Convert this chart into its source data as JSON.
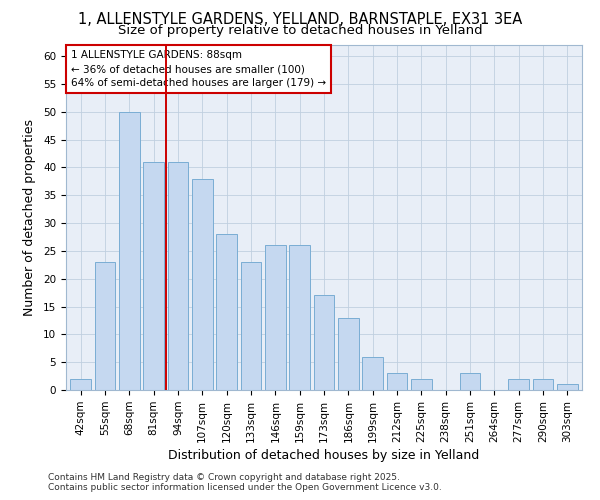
{
  "title_line1": "1, ALLENSTYLE GARDENS, YELLAND, BARNSTAPLE, EX31 3EA",
  "title_line2": "Size of property relative to detached houses in Yelland",
  "xlabel": "Distribution of detached houses by size in Yelland",
  "ylabel": "Number of detached properties",
  "categories": [
    "42sqm",
    "55sqm",
    "68sqm",
    "81sqm",
    "94sqm",
    "107sqm",
    "120sqm",
    "133sqm",
    "146sqm",
    "159sqm",
    "173sqm",
    "186sqm",
    "199sqm",
    "212sqm",
    "225sqm",
    "238sqm",
    "251sqm",
    "264sqm",
    "277sqm",
    "290sqm",
    "303sqm"
  ],
  "values": [
    2,
    23,
    50,
    41,
    41,
    38,
    28,
    23,
    26,
    26,
    17,
    13,
    6,
    3,
    2,
    0,
    3,
    0,
    2,
    2,
    1
  ],
  "bar_color": "#c5d8f0",
  "bar_edge_color": "#7aadd4",
  "vline_x": 3.5,
  "vline_color": "#cc0000",
  "annotation_text": "1 ALLENSTYLE GARDENS: 88sqm\n← 36% of detached houses are smaller (100)\n64% of semi-detached houses are larger (179) →",
  "annotation_box_color": "#ffffff",
  "annotation_box_edge": "#cc0000",
  "ylim": [
    0,
    62
  ],
  "yticks": [
    0,
    5,
    10,
    15,
    20,
    25,
    30,
    35,
    40,
    45,
    50,
    55,
    60
  ],
  "background_color": "#e8eef7",
  "footer_text": "Contains HM Land Registry data © Crown copyright and database right 2025.\nContains public sector information licensed under the Open Government Licence v3.0.",
  "title_fontsize": 10.5,
  "subtitle_fontsize": 9.5,
  "axis_label_fontsize": 9,
  "tick_fontsize": 7.5,
  "annotation_fontsize": 7.5,
  "footer_fontsize": 6.5
}
